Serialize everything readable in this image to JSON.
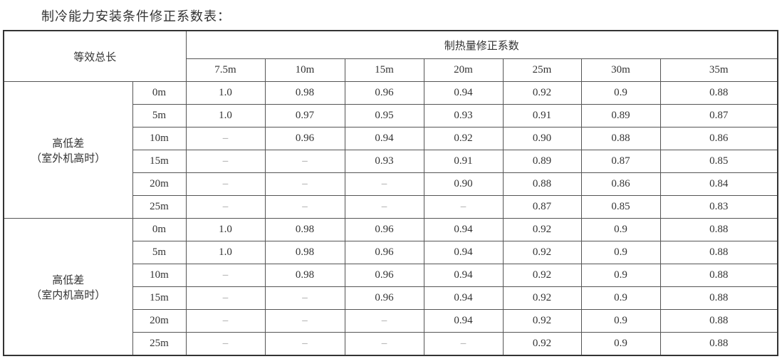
{
  "title": "制冷能力安装条件修正系数表：",
  "table": {
    "corner_label": "等效总长",
    "group_header": "制热量修正系数",
    "columns": [
      "7.5m",
      "10m",
      "15m",
      "20m",
      "25m",
      "30m",
      "35m"
    ],
    "groups": [
      {
        "label_line1": "高低差",
        "label_line2": "（室外机高时）",
        "rows": [
          {
            "height": "0m",
            "values": [
              "1.0",
              "0.98",
              "0.96",
              "0.94",
              "0.92",
              "0.9",
              "0.88"
            ]
          },
          {
            "height": "5m",
            "values": [
              "1.0",
              "0.97",
              "0.95",
              "0.93",
              "0.91",
              "0.89",
              "0.87"
            ]
          },
          {
            "height": "10m",
            "values": [
              "–",
              "0.96",
              "0.94",
              "0.92",
              "0.90",
              "0.88",
              "0.86"
            ]
          },
          {
            "height": "15m",
            "values": [
              "–",
              "–",
              "0.93",
              "0.91",
              "0.89",
              "0.87",
              "0.85"
            ]
          },
          {
            "height": "20m",
            "values": [
              "–",
              "–",
              "–",
              "0.90",
              "0.88",
              "0.86",
              "0.84"
            ]
          },
          {
            "height": "25m",
            "values": [
              "–",
              "–",
              "–",
              "–",
              "0.87",
              "0.85",
              "0.83"
            ]
          }
        ]
      },
      {
        "label_line1": "高低差",
        "label_line2": "（室内机高时）",
        "rows": [
          {
            "height": "0m",
            "values": [
              "1.0",
              "0.98",
              "0.96",
              "0.94",
              "0.92",
              "0.9",
              "0.88"
            ]
          },
          {
            "height": "5m",
            "values": [
              "1.0",
              "0.98",
              "0.96",
              "0.94",
              "0.92",
              "0.9",
              "0.88"
            ]
          },
          {
            "height": "10m",
            "values": [
              "–",
              "0.98",
              "0.96",
              "0.94",
              "0.92",
              "0.9",
              "0.88"
            ]
          },
          {
            "height": "15m",
            "values": [
              "–",
              "–",
              "0.96",
              "0.94",
              "0.92",
              "0.9",
              "0.88"
            ]
          },
          {
            "height": "20m",
            "values": [
              "–",
              "–",
              "–",
              "0.94",
              "0.92",
              "0.9",
              "0.88"
            ]
          },
          {
            "height": "25m",
            "values": [
              "–",
              "–",
              "–",
              "–",
              "0.92",
              "0.9",
              "0.88"
            ]
          }
        ]
      }
    ]
  }
}
